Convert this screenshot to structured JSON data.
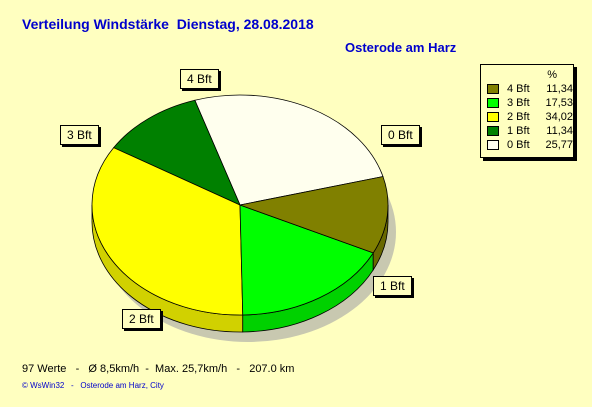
{
  "header": {
    "title": "Verteilung Windstärke  Dienstag, 28.08.2018",
    "location": "Osterode am Harz"
  },
  "legend": {
    "unit": "%",
    "items": [
      {
        "name": "4 Bft",
        "value": "11,34",
        "color": "#808000"
      },
      {
        "name": "3 Bft",
        "value": "17,53",
        "color": "#00FF00"
      },
      {
        "name": "2 Bft",
        "value": "34,02",
        "color": "#FFFF00"
      },
      {
        "name": "1 Bft",
        "value": "11,34",
        "color": "#008000"
      },
      {
        "name": "0 Bft",
        "value": "25,77",
        "color": "#FFFFEE"
      }
    ]
  },
  "chart_data": {
    "type": "pie",
    "title": "Verteilung Windstärke  Dienstag, 28.08.2018",
    "subtitle": "Osterode am Harz",
    "unit": "%",
    "categories": [
      "0 Bft",
      "1 Bft",
      "2 Bft",
      "3 Bft",
      "4 Bft"
    ],
    "values": [
      25.77,
      11.34,
      34.02,
      17.53,
      11.34
    ],
    "colors": [
      "#FFFFEE",
      "#008000",
      "#FFFF00",
      "#00FF00",
      "#808000"
    ],
    "legend_position": "top-right",
    "three_d": true
  },
  "footer": {
    "stats": "97 Werte   -   Ø 8,5km/h  -  Max. 25,7km/h   -   207.0 km",
    "credit": "© WsWin32   -   Osterode am Harz, City"
  }
}
